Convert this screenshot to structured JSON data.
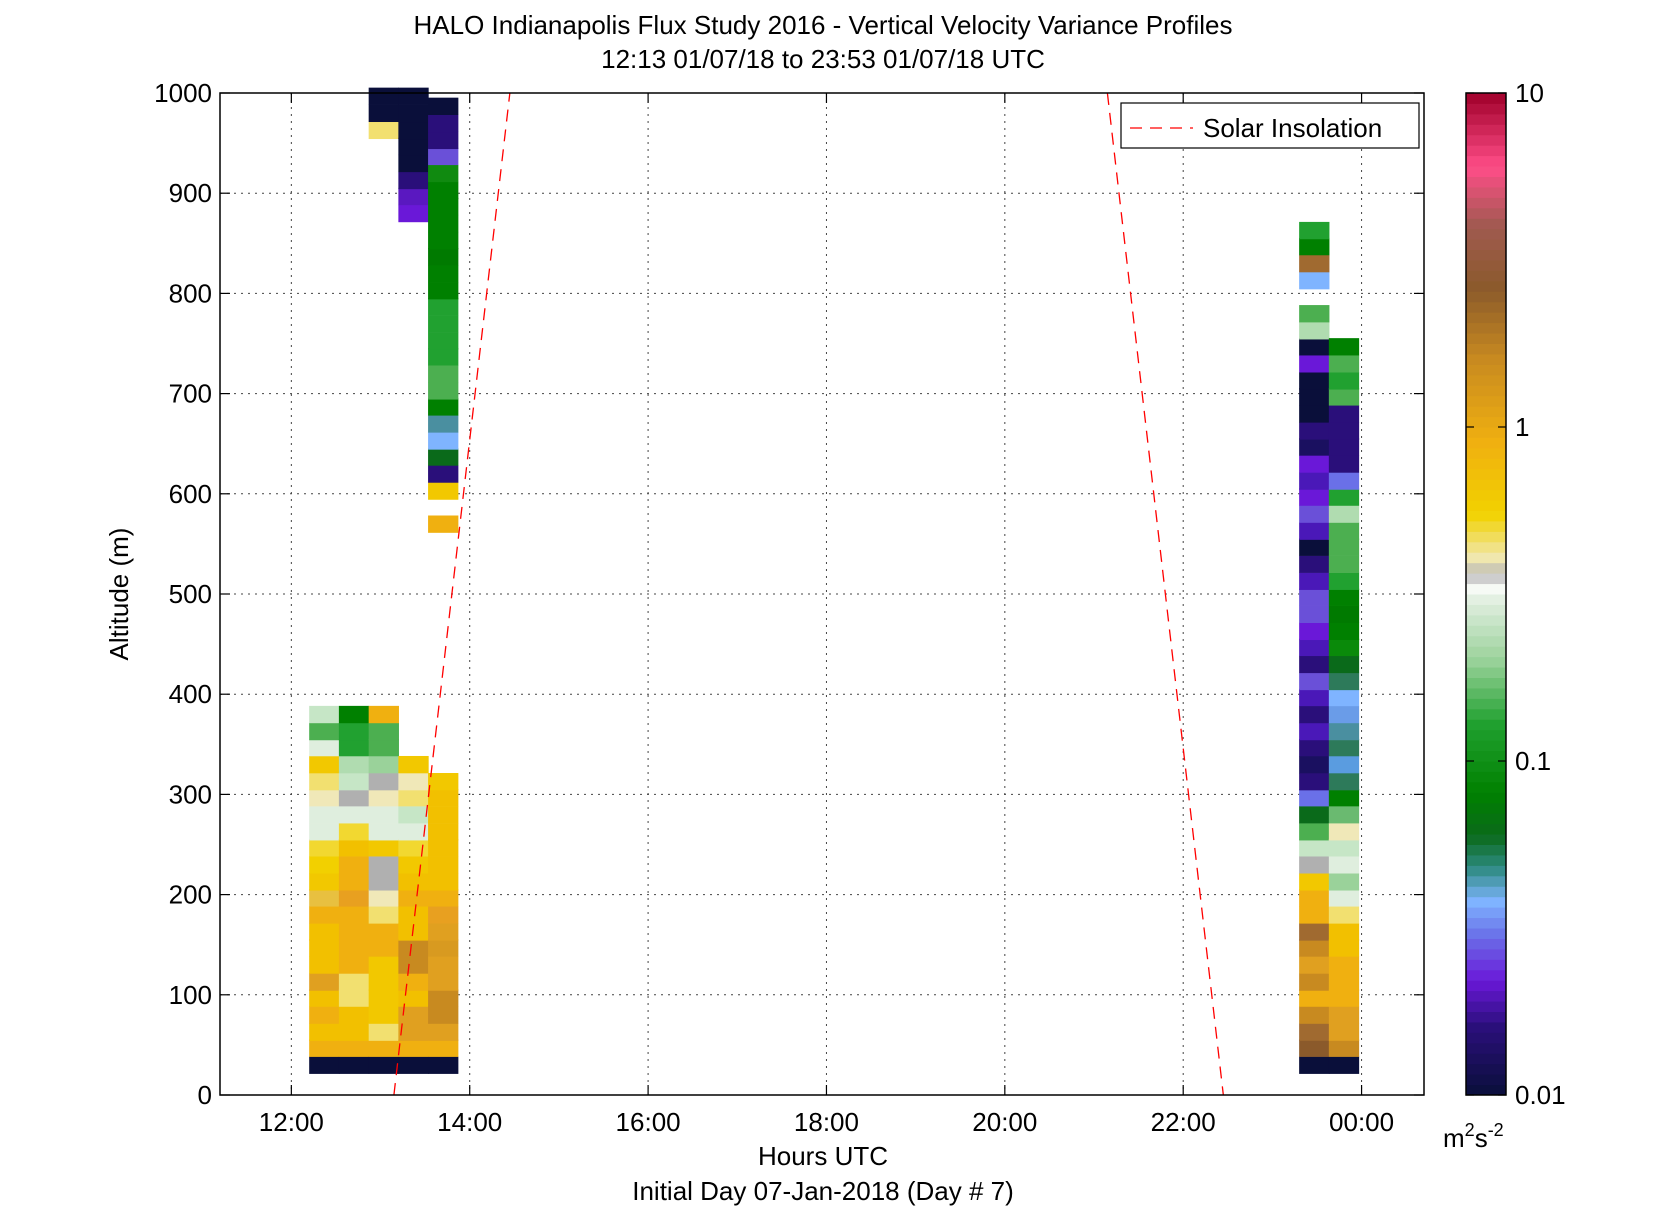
{
  "chart_data": {
    "type": "heatmap",
    "title": "HALO Indianapolis Flux Study 2016 - Vertical Velocity Variance Profiles",
    "subtitle": "12:13 01/07/18 to 23:53 01/07/18  UTC",
    "xlabel": "Hours UTC",
    "xlabel2": "Initial Day 07-Jan-2018 (Day # 7)",
    "ylabel": "Altitude (m)",
    "xlim": [
      11.2,
      24.7
    ],
    "ylim": [
      0,
      1000
    ],
    "x_ticks": [
      {
        "v": 12,
        "label": "12:00"
      },
      {
        "v": 14,
        "label": "14:00"
      },
      {
        "v": 16,
        "label": "16:00"
      },
      {
        "v": 18,
        "label": "18:00"
      },
      {
        "v": 20,
        "label": "20:00"
      },
      {
        "v": 22,
        "label": "22:00"
      },
      {
        "v": 24,
        "label": "00:00"
      }
    ],
    "y_ticks": [
      {
        "v": 0,
        "label": "0"
      },
      {
        "v": 100,
        "label": "100"
      },
      {
        "v": 200,
        "label": "200"
      },
      {
        "v": 300,
        "label": "300"
      },
      {
        "v": 400,
        "label": "400"
      },
      {
        "v": 500,
        "label": "500"
      },
      {
        "v": 600,
        "label": "600"
      },
      {
        "v": 700,
        "label": "700"
      },
      {
        "v": 800,
        "label": "800"
      },
      {
        "v": 900,
        "label": "900"
      },
      {
        "v": 1000,
        "label": "1000"
      }
    ],
    "grid": true,
    "legend": {
      "position": "top-right",
      "entries": [
        {
          "name": "Solar Insolation",
          "style": "dashed",
          "color": "#ff0000"
        }
      ]
    },
    "colorbar": {
      "scale": "log",
      "range": [
        0.01,
        10
      ],
      "ticks": [
        {
          "v": 0.01,
          "label": "0.01"
        },
        {
          "v": 0.1,
          "label": "0.1"
        },
        {
          "v": 1,
          "label": "1"
        },
        {
          "v": 10,
          "label": "10"
        }
      ],
      "unit_base": "m",
      "unit_sup1": "2",
      "unit_mid": "s",
      "unit_sup2": "-2",
      "stops": [
        {
          "v": 0.01,
          "color": "#0a0f3a"
        },
        {
          "v": 0.016,
          "color": "#2a0f7a"
        },
        {
          "v": 0.022,
          "color": "#6a18d8"
        },
        {
          "v": 0.03,
          "color": "#6a70e8"
        },
        {
          "v": 0.038,
          "color": "#7fb4ff"
        },
        {
          "v": 0.048,
          "color": "#2d8a80"
        },
        {
          "v": 0.06,
          "color": "#0a6a1a"
        },
        {
          "v": 0.08,
          "color": "#008000"
        },
        {
          "v": 0.13,
          "color": "#21a130"
        },
        {
          "v": 0.2,
          "color": "#9ad29a"
        },
        {
          "v": 0.3,
          "color": "#dfeede"
        },
        {
          "v": 0.34,
          "color": "#ffffff"
        },
        {
          "v": 0.36,
          "color": "#b0b0b0"
        },
        {
          "v": 0.4,
          "color": "#f0e8b8"
        },
        {
          "v": 0.55,
          "color": "#f2d200"
        },
        {
          "v": 0.9,
          "color": "#f0b010"
        },
        {
          "v": 1.6,
          "color": "#c88a20"
        },
        {
          "v": 2.6,
          "color": "#8b5a2b"
        },
        {
          "v": 4,
          "color": "#a05a50"
        },
        {
          "v": 6,
          "color": "#ff4d88"
        },
        {
          "v": 10,
          "color": "#a0002a"
        }
      ]
    },
    "solar_insolation": [
      {
        "x": [
          13.15,
          14.45
        ],
        "y": [
          0,
          1000
        ]
      },
      {
        "x": [
          21.15,
          22.45
        ],
        "y": [
          1000,
          0
        ]
      }
    ],
    "cell_width_h": 0.333,
    "cell_height_m": 16.7,
    "columns": [
      {
        "x": 12.2,
        "cells": [
          [
            30,
            "#0a0f3a"
          ],
          [
            47,
            "#f0b010"
          ],
          [
            63,
            "#f2c000"
          ],
          [
            80,
            "#f0b010"
          ],
          [
            97,
            "#f2c000"
          ],
          [
            113,
            "#e0a020"
          ],
          [
            130,
            "#f2c000"
          ],
          [
            147,
            "#f2c000"
          ],
          [
            163,
            "#f2c000"
          ],
          [
            180,
            "#f0b010"
          ],
          [
            197,
            "#e8c040"
          ],
          [
            213,
            "#f2c800"
          ],
          [
            230,
            "#f2d000"
          ],
          [
            247,
            "#f2d830"
          ],
          [
            263,
            "#dfeede"
          ],
          [
            280,
            "#dfeede"
          ],
          [
            297,
            "#f0e8b8"
          ],
          [
            313,
            "#f2e070"
          ],
          [
            330,
            "#f2c800"
          ],
          [
            347,
            "#dfeede"
          ],
          [
            363,
            "#4caf50"
          ],
          [
            380,
            "#c6e6c6"
          ]
        ]
      },
      {
        "x": 12.533,
        "cells": [
          [
            30,
            "#0a0f3a"
          ],
          [
            47,
            "#f0b010"
          ],
          [
            63,
            "#f2c000"
          ],
          [
            80,
            "#f2c000"
          ],
          [
            97,
            "#f2e070"
          ],
          [
            113,
            "#f2e070"
          ],
          [
            130,
            "#f0b010"
          ],
          [
            147,
            "#f0b010"
          ],
          [
            163,
            "#f0b010"
          ],
          [
            180,
            "#f0b010"
          ],
          [
            197,
            "#e8a020"
          ],
          [
            213,
            "#f0b010"
          ],
          [
            230,
            "#f0b010"
          ],
          [
            247,
            "#f2c000"
          ],
          [
            263,
            "#f2d830"
          ],
          [
            280,
            "#dfeede"
          ],
          [
            297,
            "#b0b0b0"
          ],
          [
            313,
            "#c6e6c6"
          ],
          [
            330,
            "#b0dcb0"
          ],
          [
            347,
            "#21a130"
          ],
          [
            363,
            "#21a130"
          ],
          [
            380,
            "#008000"
          ]
        ]
      },
      {
        "x": 12.867,
        "cells": [
          [
            30,
            "#0a0f3a"
          ],
          [
            47,
            "#f0b010"
          ],
          [
            63,
            "#f2e070"
          ],
          [
            80,
            "#f2c800"
          ],
          [
            97,
            "#f2c800"
          ],
          [
            113,
            "#f2c800"
          ],
          [
            130,
            "#f2c800"
          ],
          [
            147,
            "#f0b010"
          ],
          [
            163,
            "#f0b010"
          ],
          [
            180,
            "#f2e070"
          ],
          [
            197,
            "#f0e8b8"
          ],
          [
            213,
            "#b0b0b0"
          ],
          [
            230,
            "#b0b0b0"
          ],
          [
            247,
            "#f2c800"
          ],
          [
            263,
            "#dfeede"
          ],
          [
            280,
            "#dfeede"
          ],
          [
            297,
            "#f0e8b8"
          ],
          [
            313,
            "#b0b0b0"
          ],
          [
            330,
            "#9ad29a"
          ],
          [
            347,
            "#4caf50"
          ],
          [
            363,
            "#4caf50"
          ],
          [
            380,
            "#f0b010"
          ],
          [
            963,
            "#f2e070"
          ],
          [
            980,
            "#0a0f3a"
          ],
          [
            997,
            "#0a0f3a"
          ]
        ]
      },
      {
        "x": 13.2,
        "cells": [
          [
            30,
            "#0a0f3a"
          ],
          [
            47,
            "#f0b010"
          ],
          [
            63,
            "#e0a020"
          ],
          [
            80,
            "#e0a020"
          ],
          [
            97,
            "#f2c000"
          ],
          [
            113,
            "#f0b010"
          ],
          [
            130,
            "#c88a20"
          ],
          [
            147,
            "#c88a20"
          ],
          [
            163,
            "#f2c000"
          ],
          [
            180,
            "#f2c000"
          ],
          [
            197,
            "#f0b010"
          ],
          [
            213,
            "#f2c000"
          ],
          [
            230,
            "#f2c800"
          ],
          [
            247,
            "#f2d830"
          ],
          [
            263,
            "#dfeede"
          ],
          [
            280,
            "#c6e6c6"
          ],
          [
            297,
            "#f2e070"
          ],
          [
            313,
            "#f0e8b8"
          ],
          [
            330,
            "#f2c800"
          ],
          [
            880,
            "#6a18d8"
          ],
          [
            897,
            "#5a18c0"
          ],
          [
            913,
            "#2a0f7a"
          ],
          [
            930,
            "#0a0f3a"
          ],
          [
            947,
            "#0a0f3a"
          ],
          [
            963,
            "#0a0f3a"
          ],
          [
            980,
            "#0a0f3a"
          ],
          [
            997,
            "#0a0f3a"
          ]
        ]
      },
      {
        "x": 13.533,
        "cells": [
          [
            30,
            "#0a0f3a"
          ],
          [
            47,
            "#f0b010"
          ],
          [
            63,
            "#e0a020"
          ],
          [
            80,
            "#c88a20"
          ],
          [
            97,
            "#c88a20"
          ],
          [
            113,
            "#e0a020"
          ],
          [
            130,
            "#e0a020"
          ],
          [
            147,
            "#d89a20"
          ],
          [
            163,
            "#e0a020"
          ],
          [
            180,
            "#e8a020"
          ],
          [
            197,
            "#f0b010"
          ],
          [
            213,
            "#f2c000"
          ],
          [
            230,
            "#f2c000"
          ],
          [
            247,
            "#f2c000"
          ],
          [
            263,
            "#f2c000"
          ],
          [
            280,
            "#f2c000"
          ],
          [
            297,
            "#f2c000"
          ],
          [
            313,
            "#f2c800"
          ],
          [
            570,
            "#f0b010"
          ],
          [
            603,
            "#f2c800"
          ],
          [
            620,
            "#2a0f7a"
          ],
          [
            637,
            "#0a6a1a"
          ],
          [
            653,
            "#7fb4ff"
          ],
          [
            670,
            "#4a8fa0"
          ],
          [
            687,
            "#008000"
          ],
          [
            703,
            "#4caf50"
          ],
          [
            720,
            "#4caf50"
          ],
          [
            737,
            "#21a130"
          ],
          [
            753,
            "#21a130"
          ],
          [
            770,
            "#21a130"
          ],
          [
            787,
            "#21a130"
          ],
          [
            803,
            "#008000"
          ],
          [
            820,
            "#008000"
          ],
          [
            837,
            "#007a00"
          ],
          [
            853,
            "#008000"
          ],
          [
            870,
            "#008000"
          ],
          [
            887,
            "#008000"
          ],
          [
            903,
            "#008000"
          ],
          [
            920,
            "#108a10"
          ],
          [
            937,
            "#6a50d8"
          ],
          [
            953,
            "#2a0f7a"
          ],
          [
            970,
            "#2a0f7a"
          ],
          [
            987,
            "#0a0f3a"
          ]
        ]
      },
      {
        "x": 23.3,
        "cells": [
          [
            30,
            "#0a0f3a"
          ],
          [
            47,
            "#8b5a2b"
          ],
          [
            63,
            "#a06a30"
          ],
          [
            80,
            "#c88a20"
          ],
          [
            97,
            "#f0b010"
          ],
          [
            113,
            "#c88a20"
          ],
          [
            130,
            "#e0a020"
          ],
          [
            147,
            "#c88a20"
          ],
          [
            163,
            "#a06a30"
          ],
          [
            180,
            "#f0b010"
          ],
          [
            197,
            "#f0b010"
          ],
          [
            213,
            "#f2c800"
          ],
          [
            230,
            "#b0b0b0"
          ],
          [
            247,
            "#c6e6c6"
          ],
          [
            263,
            "#4caf50"
          ],
          [
            280,
            "#0a6a1a"
          ],
          [
            297,
            "#6a70e8"
          ],
          [
            313,
            "#2a0f7a"
          ],
          [
            330,
            "#1a1060"
          ],
          [
            347,
            "#2a0f7a"
          ],
          [
            363,
            "#4a18b8"
          ],
          [
            380,
            "#2a0f7a"
          ],
          [
            397,
            "#4a18b8"
          ],
          [
            413,
            "#6a50d8"
          ],
          [
            430,
            "#2a0f7a"
          ],
          [
            447,
            "#4a18b8"
          ],
          [
            463,
            "#6a18d8"
          ],
          [
            480,
            "#6a50d8"
          ],
          [
            497,
            "#6a50d8"
          ],
          [
            513,
            "#4a18b8"
          ],
          [
            530,
            "#2a0f7a"
          ],
          [
            547,
            "#0a0f3a"
          ],
          [
            563,
            "#4a18b8"
          ],
          [
            580,
            "#6a50d8"
          ],
          [
            597,
            "#6a18d8"
          ],
          [
            613,
            "#4a18b8"
          ],
          [
            630,
            "#6a18d8"
          ],
          [
            647,
            "#1a1060"
          ],
          [
            663,
            "#2a0f7a"
          ],
          [
            680,
            "#0a0f3a"
          ],
          [
            697,
            "#0a0f3a"
          ],
          [
            713,
            "#0a0f3a"
          ],
          [
            730,
            "#6a18d8"
          ],
          [
            747,
            "#0a0f3a"
          ],
          [
            763,
            "#b0dcb0"
          ],
          [
            780,
            "#4caf50"
          ],
          [
            813,
            "#7fb4ff"
          ],
          [
            830,
            "#a06a30"
          ],
          [
            847,
            "#008000"
          ],
          [
            863,
            "#21a130"
          ]
        ]
      },
      {
        "x": 23.633,
        "cells": [
          [
            30,
            "#0a0f3a"
          ],
          [
            47,
            "#c88a20"
          ],
          [
            63,
            "#e0a020"
          ],
          [
            80,
            "#e0a020"
          ],
          [
            97,
            "#f0b010"
          ],
          [
            113,
            "#f0b010"
          ],
          [
            130,
            "#f0b010"
          ],
          [
            147,
            "#f2c000"
          ],
          [
            163,
            "#f2c000"
          ],
          [
            180,
            "#f2e070"
          ],
          [
            197,
            "#dfeede"
          ],
          [
            213,
            "#9ad29a"
          ],
          [
            230,
            "#dfeede"
          ],
          [
            247,
            "#c6e6c6"
          ],
          [
            263,
            "#f0e8b8"
          ],
          [
            280,
            "#6aba70"
          ],
          [
            297,
            "#008000"
          ],
          [
            313,
            "#2d7a5a"
          ],
          [
            330,
            "#5a9ce0"
          ],
          [
            347,
            "#2d7a5a"
          ],
          [
            363,
            "#4a8fa0"
          ],
          [
            380,
            "#6a9ce8"
          ],
          [
            397,
            "#7fb4ff"
          ],
          [
            413,
            "#2d7a5a"
          ],
          [
            430,
            "#0a6a1a"
          ],
          [
            447,
            "#0a8a0a"
          ],
          [
            463,
            "#008000"
          ],
          [
            480,
            "#007a00"
          ],
          [
            497,
            "#008000"
          ],
          [
            513,
            "#21a130"
          ],
          [
            530,
            "#4caf50"
          ],
          [
            547,
            "#4caf50"
          ],
          [
            563,
            "#4caf50"
          ],
          [
            580,
            "#b0dcb0"
          ],
          [
            597,
            "#21a130"
          ],
          [
            613,
            "#6a70e8"
          ],
          [
            630,
            "#2a0f7a"
          ],
          [
            647,
            "#2a0f7a"
          ],
          [
            663,
            "#2a0f7a"
          ],
          [
            680,
            "#2a0f7a"
          ],
          [
            697,
            "#4caf50"
          ],
          [
            713,
            "#21a130"
          ],
          [
            730,
            "#4caf50"
          ],
          [
            747,
            "#008000"
          ]
        ]
      }
    ]
  }
}
